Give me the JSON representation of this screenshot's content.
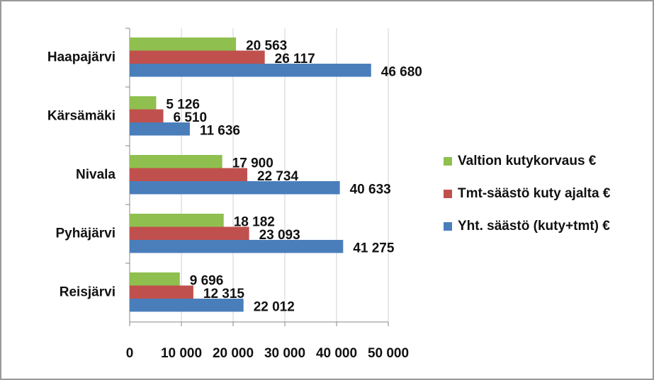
{
  "chart_data": {
    "type": "bar",
    "orientation": "horizontal",
    "categories": [
      "Haapajärvi",
      "Kärsämäki",
      "Nivala",
      "Pyhäjärvi",
      "Reisjärvi"
    ],
    "series": [
      {
        "name": "Valtion kutykorvaus €",
        "color": "#8fbf4f",
        "values": [
          20563,
          5126,
          17900,
          18182,
          9696
        ],
        "value_labels": [
          "20 563",
          "5 126",
          "17 900",
          "18 182",
          "9 696"
        ]
      },
      {
        "name": "Tmt-säästö kuty ajalta €",
        "color": "#c0504d",
        "values": [
          26117,
          6510,
          22734,
          23093,
          12315
        ],
        "value_labels": [
          "26 117",
          "6 510",
          "22 734",
          "23 093",
          "12 315"
        ]
      },
      {
        "name": "Yht. säästö (kuty+tmt) €",
        "color": "#4a7ebb",
        "values": [
          46680,
          11636,
          40633,
          41275,
          22012
        ],
        "value_labels": [
          "46 680",
          "11 636",
          "40 633",
          "41 275",
          "22 012"
        ]
      }
    ],
    "xlim": [
      0,
      50000
    ],
    "xticks": [
      0,
      {
        "value": 10000,
        "label": "10 000"
      },
      {
        "value": 20000,
        "label": "20 000"
      },
      {
        "value": 30000,
        "label": "30 000"
      },
      {
        "value": 40000,
        "label": "40 000"
      },
      {
        "value": 50000,
        "label": "50 000"
      }
    ],
    "grid": true,
    "legend": "right"
  }
}
